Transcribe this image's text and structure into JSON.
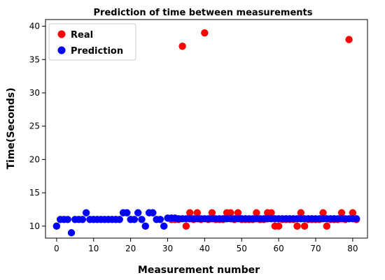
{
  "chart_data": {
    "type": "scatter",
    "title": "Prediction of time between measurements",
    "xlabel": "Measurement number",
    "ylabel": "Time(Seconds)",
    "xlim": [
      -3,
      84
    ],
    "ylim": [
      8.2,
      41
    ],
    "xticks": [
      0,
      10,
      20,
      30,
      40,
      50,
      60,
      70,
      80
    ],
    "yticks": [
      10,
      15,
      20,
      25,
      30,
      35,
      40
    ],
    "grid": false,
    "legend_position": "top-left",
    "series": [
      {
        "name": "Real",
        "color": "#ff0000",
        "x": [
          31,
          32,
          33,
          34,
          35,
          36,
          37,
          38,
          39,
          40,
          41,
          42,
          43,
          44,
          45,
          46,
          47,
          48,
          49,
          50,
          51,
          52,
          53,
          54,
          55,
          56,
          57,
          58,
          59,
          60,
          61,
          62,
          63,
          64,
          65,
          66,
          67,
          68,
          69,
          70,
          71,
          72,
          73,
          74,
          75,
          76,
          77,
          78,
          79,
          80,
          81
        ],
        "y": [
          11,
          11,
          11,
          37,
          10,
          12,
          11,
          12,
          11,
          39,
          11,
          12,
          11,
          11,
          11,
          12,
          12,
          11,
          12,
          11,
          11,
          11,
          11,
          12,
          11,
          11,
          12,
          12,
          10,
          10,
          11,
          11,
          11,
          11,
          10,
          12,
          10,
          11,
          11,
          11,
          11,
          12,
          10,
          11,
          11,
          11,
          12,
          11,
          38,
          12,
          11
        ]
      },
      {
        "name": "Prediction",
        "color": "#0000ff",
        "x": [
          0,
          1,
          2,
          3,
          4,
          5,
          6,
          7,
          8,
          9,
          10,
          11,
          12,
          13,
          14,
          15,
          16,
          17,
          18,
          19,
          20,
          21,
          22,
          23,
          24,
          25,
          26,
          27,
          28,
          29,
          30,
          31,
          32,
          33,
          34,
          35,
          36,
          37,
          38,
          39,
          40,
          41,
          42,
          43,
          44,
          45,
          46,
          47,
          48,
          49,
          50,
          51,
          52,
          53,
          54,
          55,
          56,
          57,
          58,
          59,
          60,
          61,
          62,
          63,
          64,
          65,
          66,
          67,
          68,
          69,
          70,
          71,
          72,
          73,
          74,
          75,
          76,
          77,
          78,
          79,
          80,
          81
        ],
        "y": [
          10,
          11,
          11,
          11,
          9,
          11,
          11,
          11,
          12,
          11,
          11,
          11,
          11,
          11,
          11,
          11,
          11,
          11,
          12,
          12,
          11,
          11,
          12,
          11,
          10,
          12,
          12,
          11,
          11,
          10,
          11.2,
          11.2,
          11.2,
          11.1,
          11.1,
          11.1,
          11.1,
          11.1,
          11.1,
          11.1,
          11.1,
          11.1,
          11.1,
          11.1,
          11.1,
          11.1,
          11.1,
          11.1,
          11.1,
          11.1,
          11.1,
          11.1,
          11.1,
          11.1,
          11.1,
          11.1,
          11.1,
          11.1,
          11.1,
          11.1,
          11.1,
          11.1,
          11.1,
          11.1,
          11.1,
          11.1,
          11.1,
          11.1,
          11.1,
          11.1,
          11.1,
          11.1,
          11.1,
          11.1,
          11.1,
          11.1,
          11.1,
          11.1,
          11.1,
          11.1,
          11.1,
          11.1
        ]
      }
    ]
  }
}
